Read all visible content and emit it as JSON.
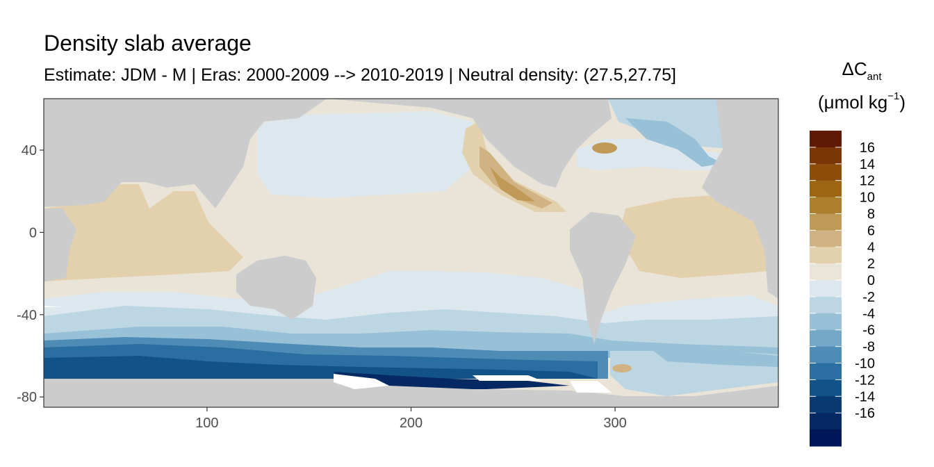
{
  "title": "Density slab average",
  "subtitle": "Estimate: JDM - M | Eras: 2000-2009 --> 2010-2019 | Neutral density: (27.5,27.75]",
  "legend": {
    "title_symbol": "ΔC",
    "title_sub": "ant",
    "unit_prefix": "(μmol kg",
    "unit_sup": "−1",
    "unit_suffix": ")",
    "colors": [
      "#5e1a05",
      "#7a3606",
      "#8c4d08",
      "#9c6514",
      "#ad7f2f",
      "#bf9955",
      "#d1b383",
      "#e3d0ad",
      "#ebe4d8",
      "#dde8ee",
      "#bcd6e4",
      "#98c0d7",
      "#74a8c8",
      "#4e8cb6",
      "#2b6ea1",
      "#135287",
      "#0a3a72",
      "#052a63",
      "#00185a"
    ],
    "labels": [
      "16",
      "14",
      "12",
      "10",
      "8",
      "6",
      "4",
      "2",
      "0",
      "-2",
      "-4",
      "-6",
      "-8",
      "-10",
      "-12",
      "-14",
      "-16"
    ]
  },
  "axes": {
    "x_ticks": [
      "100",
      "200",
      "300"
    ],
    "y_ticks": [
      "40",
      "0",
      "-40",
      "-80"
    ],
    "xlim": [
      20,
      380
    ],
    "ylim": [
      -85,
      65
    ]
  },
  "colors": {
    "land": "#cccccc",
    "missing": "#ffffff",
    "panel_border": "#333333"
  }
}
